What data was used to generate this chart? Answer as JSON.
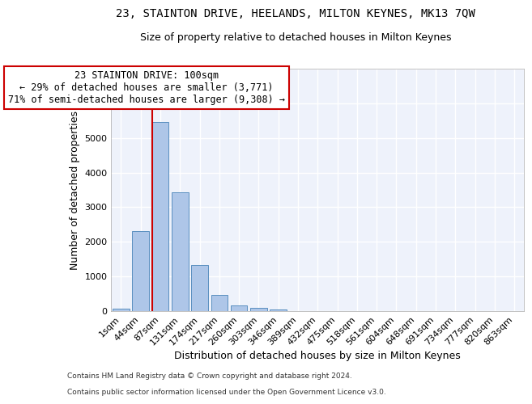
{
  "title": "23, STAINTON DRIVE, HEELANDS, MILTON KEYNES, MK13 7QW",
  "subtitle": "Size of property relative to detached houses in Milton Keynes",
  "xlabel": "Distribution of detached houses by size in Milton Keynes",
  "ylabel": "Number of detached properties",
  "footnote1": "Contains HM Land Registry data © Crown copyright and database right 2024.",
  "footnote2": "Contains public sector information licensed under the Open Government Licence v3.0.",
  "bar_labels": [
    "1sqm",
    "44sqm",
    "87sqm",
    "131sqm",
    "174sqm",
    "217sqm",
    "260sqm",
    "303sqm",
    "346sqm",
    "389sqm",
    "432sqm",
    "475sqm",
    "518sqm",
    "561sqm",
    "604sqm",
    "648sqm",
    "691sqm",
    "734sqm",
    "777sqm",
    "820sqm",
    "863sqm"
  ],
  "bar_values": [
    75,
    2300,
    5450,
    3430,
    1320,
    470,
    155,
    85,
    55,
    0,
    0,
    0,
    0,
    0,
    0,
    0,
    0,
    0,
    0,
    0,
    0
  ],
  "bar_color": "#aec6e8",
  "bar_edgecolor": "#5a8fc0",
  "highlight_bar_idx": 2,
  "highlight_color": "#cc0000",
  "annotation_line1": "23 STAINTON DRIVE: 100sqm",
  "annotation_line2": "← 29% of detached houses are smaller (3,771)",
  "annotation_line3": "71% of semi-detached houses are larger (9,308) →",
  "ylim_min": 0,
  "ylim_max": 7000,
  "ytick_step": 1000,
  "bg_color": "#eef2fb",
  "grid_color": "#ffffff",
  "title_fontsize": 10,
  "subtitle_fontsize": 9,
  "ylabel_fontsize": 9,
  "xlabel_fontsize": 9,
  "tick_fontsize": 8,
  "annot_fontsize": 8.5
}
